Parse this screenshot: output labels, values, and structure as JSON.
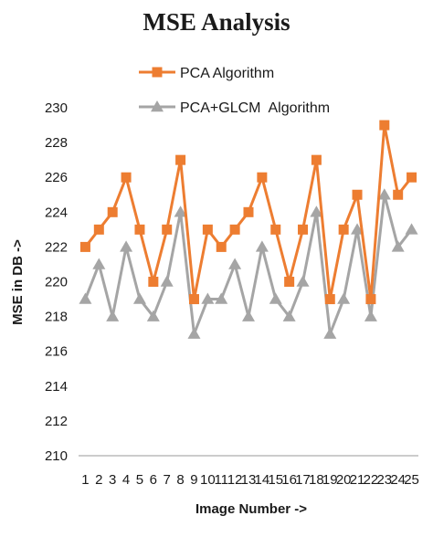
{
  "chart_data": {
    "type": "line",
    "title": "MSE Analysis",
    "xlabel": "Image Number ->",
    "ylabel": "MSE in DB ->",
    "ylim": [
      210,
      230
    ],
    "yticks": [
      210,
      212,
      214,
      216,
      218,
      220,
      222,
      224,
      226,
      228,
      230
    ],
    "x": [
      1,
      2,
      3,
      4,
      5,
      6,
      7,
      8,
      9,
      10,
      11,
      12,
      13,
      14,
      15,
      16,
      17,
      18,
      19,
      20,
      21,
      22,
      23,
      24,
      25
    ],
    "grid": false,
    "legend_position": "top",
    "series": [
      {
        "name": "PCA Algorithm",
        "color": "#ed7d31",
        "marker": "square",
        "values": [
          222,
          223,
          224,
          226,
          223,
          220,
          223,
          227,
          219,
          223,
          222,
          223,
          224,
          226,
          223,
          220,
          223,
          227,
          219,
          223,
          225,
          219,
          229,
          225,
          226
        ]
      },
      {
        "name": "PCA+GLCM  Algorithm",
        "color": "#a5a5a5",
        "marker": "triangle",
        "values": [
          219,
          221,
          218,
          222,
          219,
          218,
          220,
          224,
          217,
          219,
          219,
          221,
          218,
          222,
          219,
          218,
          220,
          224,
          217,
          219,
          223,
          218,
          225,
          222,
          223
        ]
      }
    ]
  }
}
